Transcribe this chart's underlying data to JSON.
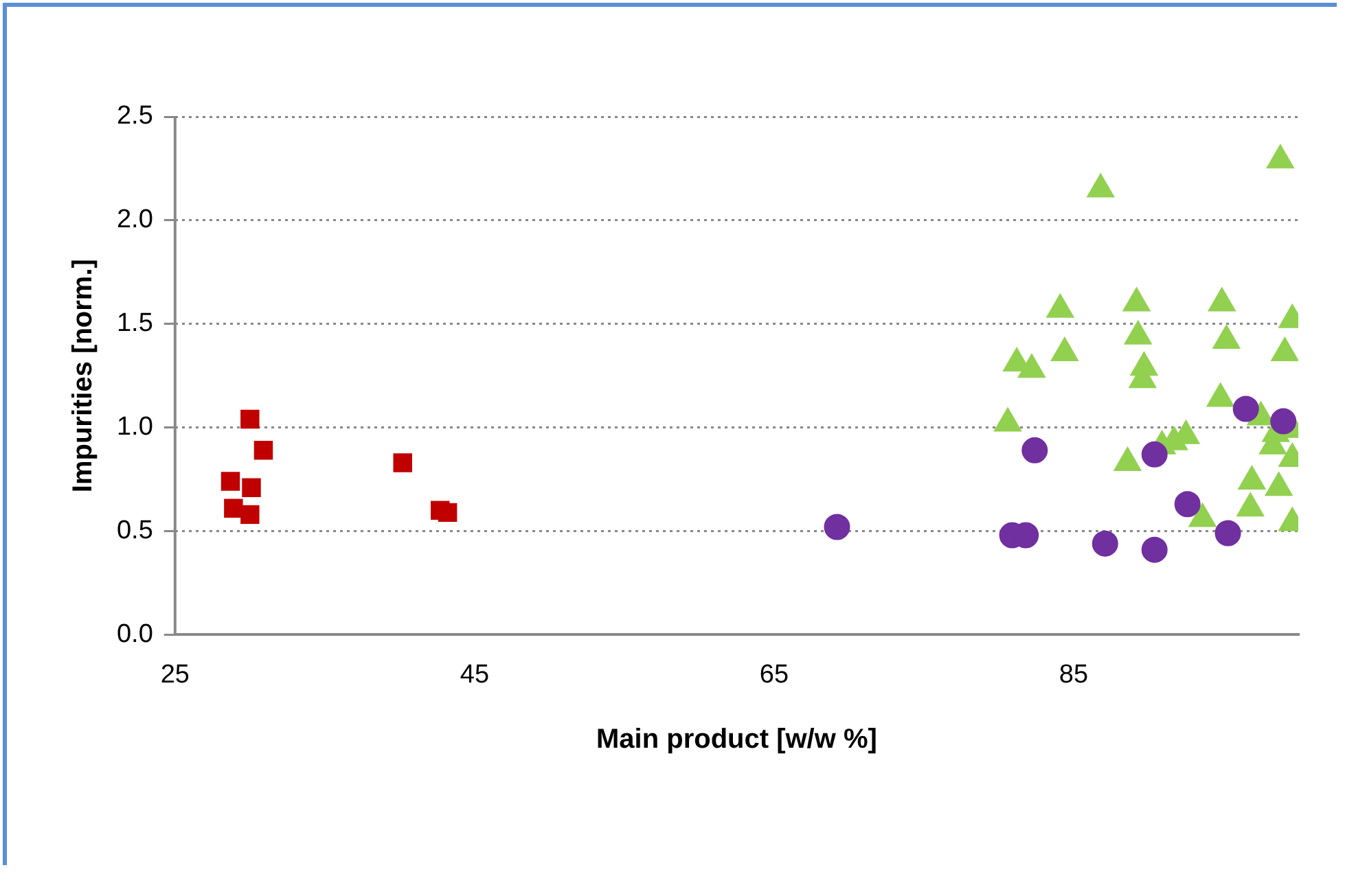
{
  "chart_data": {
    "type": "scatter",
    "xlabel": "Main product [w/w %]",
    "ylabel": "Impurities [norm.]",
    "xlim": [
      25,
      100
    ],
    "xticks": [
      25,
      45,
      65,
      85
    ],
    "ylim": [
      0,
      2.5
    ],
    "yticks": [
      {
        "value": 0,
        "label": "0.0"
      },
      {
        "value": 0.5,
        "label": "0.5"
      },
      {
        "value": 1,
        "label": "1.0"
      },
      {
        "value": 1.5,
        "label": "1.5"
      },
      {
        "value": 2,
        "label": "2.0"
      },
      {
        "value": 2.5,
        "label": "2.5"
      }
    ],
    "grid": "y",
    "legend": false,
    "series": [
      {
        "color": "#7030a0",
        "marker": "circle",
        "x": [
          69.2,
          82.4,
          80.9,
          81.8,
          87.1,
          90.4,
          90.4,
          92.6,
          95.3,
          96.5,
          99.0
        ],
        "values": [
          0.52,
          0.89,
          0.48,
          0.48,
          0.44,
          0.41,
          0.87,
          0.63,
          0.49,
          1.09,
          1.03
        ]
      },
      {
        "color": "#92d050",
        "marker": "triangle",
        "x": [
          86.8,
          98.8,
          80.6,
          81.2,
          82.2,
          84.1,
          84.4,
          89.2,
          89.3,
          89.7,
          89.6,
          88.6,
          90.9,
          91.7,
          92.5,
          93.6,
          94.9,
          95.2,
          94.8,
          97.5,
          96.9,
          96.8,
          98.3,
          98.5,
          98.7,
          99.1,
          99.6,
          99.6,
          99.6,
          99.6
        ],
        "values": [
          2.15,
          2.29,
          1.02,
          1.31,
          1.28,
          1.57,
          1.36,
          1.6,
          1.44,
          1.29,
          1.23,
          0.83,
          0.91,
          0.93,
          0.96,
          0.56,
          1.6,
          1.42,
          1.14,
          1.05,
          0.74,
          0.61,
          0.91,
          0.97,
          0.71,
          1.36,
          1.52,
          0.99,
          0.85,
          0.54
        ]
      },
      {
        "color": "#c00000",
        "marker": "square",
        "x": [
          28.7,
          28.9,
          30.0,
          30.1,
          30.0,
          30.9,
          40.2,
          42.7,
          43.2
        ],
        "values": [
          0.74,
          0.61,
          1.04,
          0.71,
          0.58,
          0.89,
          0.83,
          0.6,
          0.59
        ]
      }
    ]
  }
}
